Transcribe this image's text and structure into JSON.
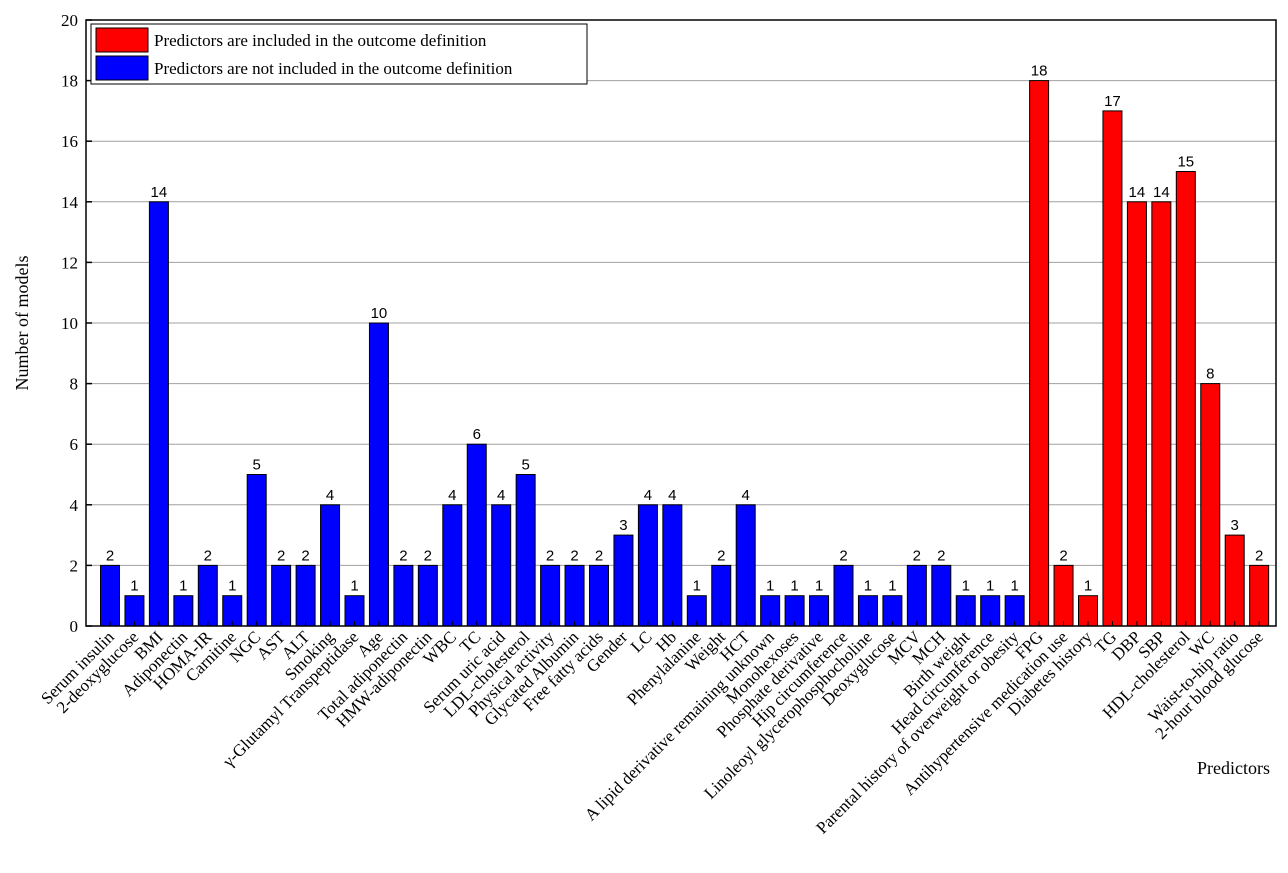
{
  "chart_data": {
    "type": "bar",
    "xlabel": "Predictors",
    "ylabel": "Number of models",
    "ylim": [
      0,
      20
    ],
    "yticks": [
      0,
      2,
      4,
      6,
      8,
      10,
      12,
      14,
      16,
      18,
      20
    ],
    "grid": "horizontal",
    "legend_position": "top-left",
    "legend": [
      {
        "label": "Predictors are included in the outcome definition",
        "color": "#ff0000"
      },
      {
        "label": "Predictors are not included in the outcome definition",
        "color": "#0000ff"
      }
    ],
    "bars": [
      {
        "label": "Serum insulin",
        "value": 2,
        "group": 1
      },
      {
        "label": "2-deoxyglucose",
        "value": 1,
        "group": 1
      },
      {
        "label": "BMI",
        "value": 14,
        "group": 1
      },
      {
        "label": "Adiponectin",
        "value": 1,
        "group": 1
      },
      {
        "label": "HOMA-IR",
        "value": 2,
        "group": 1
      },
      {
        "label": "Carnitine",
        "value": 1,
        "group": 1
      },
      {
        "label": "NGC",
        "value": 5,
        "group": 1
      },
      {
        "label": "AST",
        "value": 2,
        "group": 1
      },
      {
        "label": "ALT",
        "value": 2,
        "group": 1
      },
      {
        "label": "Smoking",
        "value": 4,
        "group": 1
      },
      {
        "label": "γ-Glutamyl Transpeptidase",
        "value": 1,
        "group": 1
      },
      {
        "label": "Age",
        "value": 10,
        "group": 1
      },
      {
        "label": "Total adiponectin",
        "value": 2,
        "group": 1
      },
      {
        "label": "HMW-adiponectin",
        "value": 2,
        "group": 1
      },
      {
        "label": "WBC",
        "value": 4,
        "group": 1
      },
      {
        "label": "TC",
        "value": 6,
        "group": 1
      },
      {
        "label": "Serum uric acid",
        "value": 4,
        "group": 1
      },
      {
        "label": "LDL-cholesterol",
        "value": 5,
        "group": 1
      },
      {
        "label": "Physical activity",
        "value": 2,
        "group": 1
      },
      {
        "label": "Glycated Albumin",
        "value": 2,
        "group": 1
      },
      {
        "label": "Free fatty acids",
        "value": 2,
        "group": 1
      },
      {
        "label": "Gender",
        "value": 3,
        "group": 1
      },
      {
        "label": "LC",
        "value": 4,
        "group": 1
      },
      {
        "label": "Hb",
        "value": 4,
        "group": 1
      },
      {
        "label": "Phenylalanine",
        "value": 1,
        "group": 1
      },
      {
        "label": "Weight",
        "value": 2,
        "group": 1
      },
      {
        "label": "HCT",
        "value": 4,
        "group": 1
      },
      {
        "label": "A lipid derivative remaining unknown",
        "value": 1,
        "group": 1
      },
      {
        "label": "Monohexoses",
        "value": 1,
        "group": 1
      },
      {
        "label": "Phosphate derivative",
        "value": 1,
        "group": 1
      },
      {
        "label": "Hip circumference",
        "value": 2,
        "group": 1
      },
      {
        "label": "Linoleoyl glycerophosphocholine",
        "value": 1,
        "group": 1
      },
      {
        "label": "Deoxyglucose",
        "value": 1,
        "group": 1
      },
      {
        "label": "MCV",
        "value": 2,
        "group": 1
      },
      {
        "label": "MCH",
        "value": 2,
        "group": 1
      },
      {
        "label": "Birth weight",
        "value": 1,
        "group": 1
      },
      {
        "label": "Head circumference",
        "value": 1,
        "group": 1
      },
      {
        "label": "Parental history of overweight or obesity",
        "value": 1,
        "group": 1
      },
      {
        "label": "FPG",
        "value": 18,
        "group": 0
      },
      {
        "label": "Antihypertensive medication use",
        "value": 2,
        "group": 0
      },
      {
        "label": "Diabetes history",
        "value": 1,
        "group": 0
      },
      {
        "label": "TG",
        "value": 17,
        "group": 0
      },
      {
        "label": "DBP",
        "value": 14,
        "group": 0
      },
      {
        "label": "SBP",
        "value": 14,
        "group": 0
      },
      {
        "label": "HDL-cholesterol",
        "value": 15,
        "group": 0
      },
      {
        "label": "WC",
        "value": 8,
        "group": 0
      },
      {
        "label": "Waist-to-hip ratio",
        "value": 3,
        "group": 0
      },
      {
        "label": "2-hour  blood glucose",
        "value": 2,
        "group": 0
      }
    ]
  }
}
